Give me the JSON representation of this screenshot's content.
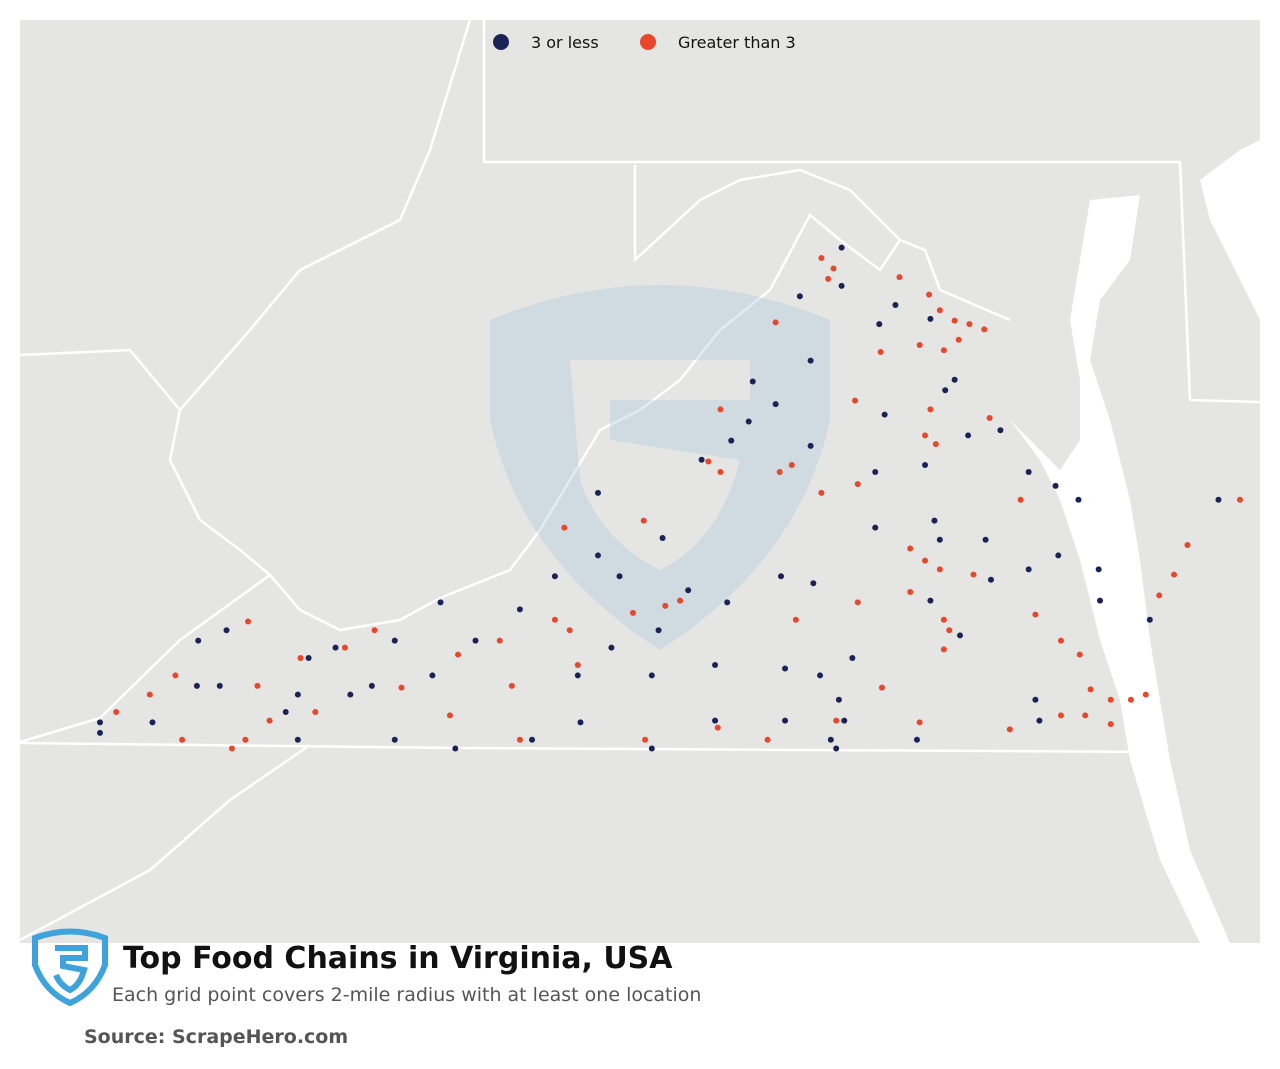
{
  "title": "Top Food Chains in Virginia, USA",
  "subtitle": "Each grid point covers 2-mile radius with at least one location",
  "source": "Source: ScrapeHero.com",
  "series": [
    {
      "name": "3 or less",
      "color": "#1b2356",
      "lon": [
        -78.16,
        -78.16,
        -78.47,
        -77.88,
        -77.76,
        -77.5,
        -77.39,
        -77.32,
        -77.84,
        -77.22,
        -76.98,
        -77.54,
        -77.47,
        -77.43,
        -77.5,
        -77.28,
        -77.91,
        -77.91,
        -77.09,
        -77.05,
        -76.77,
        -76.57,
        -76.4,
        -76.77,
        -76.55,
        -76.25,
        -76.24,
        -76.72,
        -75.87,
        -75.36,
        -78.18,
        -78.2,
        -78.58,
        -78.58,
        -79.1,
        -79.1,
        -79.57,
        -79.57,
        -80.1,
        -80.46,
        -80.12,
        -79.87,
        -79.52,
        -79.3,
        -79.01,
        -78.61,
        -78.37,
        -78.08,
        -78.32,
        -79.81,
        -79.97,
        -80.29,
        -79.97,
        -79.49,
        -79.2,
        -78.98,
        -78.82,
        -78.65,
        -78.39,
        -78.39,
        -78.85,
        -81.14,
        -80.55,
        -80.88,
        -81.48,
        -81.2,
        -81.03,
        -81.48,
        -81.81,
        -81.65,
        -82.2,
        -82.2,
        -82.29,
        -81.92,
        -82.73,
        -82.94,
        -82.78,
        -82.95,
        -83.28,
        -83.67,
        -83.67,
        -82.12,
        -78.24,
        -78.14,
        -77.6,
        -76.69
      ],
      "lat": [
        39.4,
        39.18,
        39.12,
        38.96,
        39.07,
        38.99,
        38.58,
        38.64,
        38.44,
        38.32,
        38.35,
        38.15,
        37.83,
        37.72,
        37.37,
        37.17,
        37.79,
        38.11,
        37.72,
        37.49,
        38.11,
        38.03,
        37.95,
        37.55,
        37.63,
        37.55,
        37.37,
        36.8,
        37.26,
        37.95,
        36.8,
        36.52,
        36.98,
        36.68,
        37.0,
        36.68,
        36.94,
        36.52,
        36.67,
        36.57,
        36.94,
        37.1,
        37.2,
        37.43,
        37.36,
        37.51,
        37.47,
        37.04,
        36.94,
        37.51,
        37.63,
        37.51,
        37.99,
        37.73,
        38.18,
        38.29,
        38.63,
        38.5,
        38.26,
        38.75,
        38.4,
        37.36,
        37.32,
        37.14,
        37.14,
        36.94,
        36.52,
        36.57,
        36.83,
        36.88,
        36.83,
        36.57,
        36.73,
        37.1,
        37.2,
        37.14,
        36.88,
        36.88,
        36.67,
        36.67,
        36.61,
        37.04,
        36.57,
        36.68,
        36.57,
        36.68
      ]
    },
    {
      "name": "Greater than 3",
      "color": "#e8472a",
      "lon": [
        -78.31,
        -78.22,
        -78.26,
        -77.73,
        -77.51,
        -77.43,
        -77.32,
        -77.21,
        -77.1,
        -77.29,
        -77.4,
        -77.58,
        -77.87,
        -78.65,
        -78.06,
        -77.5,
        -77.54,
        -77.46,
        -77.06,
        -79.06,
        -79.15,
        -79.06,
        -78.62,
        -78.53,
        -78.31,
        -78.04,
        -77.65,
        -77.54,
        -77.43,
        -77.65,
        -77.4,
        -77.36,
        -77.18,
        -76.83,
        -76.72,
        -76.53,
        -76.39,
        -76.31,
        -76.16,
        -76.01,
        -75.9,
        -76.16,
        -76.35,
        -76.53,
        -76.91,
        -75.59,
        -75.69,
        -75.8,
        -75.2,
        -79.36,
        -79.47,
        -79.71,
        -80.29,
        -80.18,
        -80.22,
        -79.63,
        -80.7,
        -81.01,
        -81.43,
        -81.63,
        -81.85,
        -82.18,
        -82.41,
        -82.5,
        -82.59,
        -82.69,
        -83.06,
        -83.11,
        -82.57,
        -83.3,
        -83.55,
        -82.07,
        -81.07,
        -80.61,
        -80.55,
        -80.12,
        -79.62,
        -79.08,
        -78.71,
        -78.2,
        -77.58,
        -77.86,
        -78.04,
        -78.5,
        -77.4
      ],
      "lat": [
        39.34,
        39.28,
        39.22,
        39.23,
        39.13,
        39.04,
        38.98,
        38.96,
        38.93,
        38.87,
        38.81,
        38.84,
        38.8,
        38.97,
        38.52,
        38.47,
        38.32,
        38.27,
        38.42,
        38.47,
        38.17,
        38.11,
        38.11,
        38.15,
        37.99,
        38.04,
        37.67,
        37.6,
        37.55,
        37.42,
        37.26,
        37.2,
        37.52,
        37.95,
        37.29,
        37.14,
        37.06,
        36.86,
        36.8,
        36.8,
        36.83,
        36.66,
        36.71,
        36.71,
        36.63,
        37.69,
        37.52,
        37.4,
        37.95,
        37.37,
        37.34,
        37.3,
        37.26,
        37.2,
        37.79,
        37.83,
        37.14,
        37.06,
        36.87,
        37.2,
        37.1,
        37.04,
        36.68,
        36.88,
        36.57,
        36.52,
        36.57,
        36.94,
        37.25,
        36.83,
        36.73,
        36.73,
        36.71,
        36.88,
        36.57,
        37.0,
        36.57,
        36.64,
        36.57,
        36.68,
        36.67,
        36.87,
        37.36,
        37.26,
        37.09
      ]
    }
  ]
}
